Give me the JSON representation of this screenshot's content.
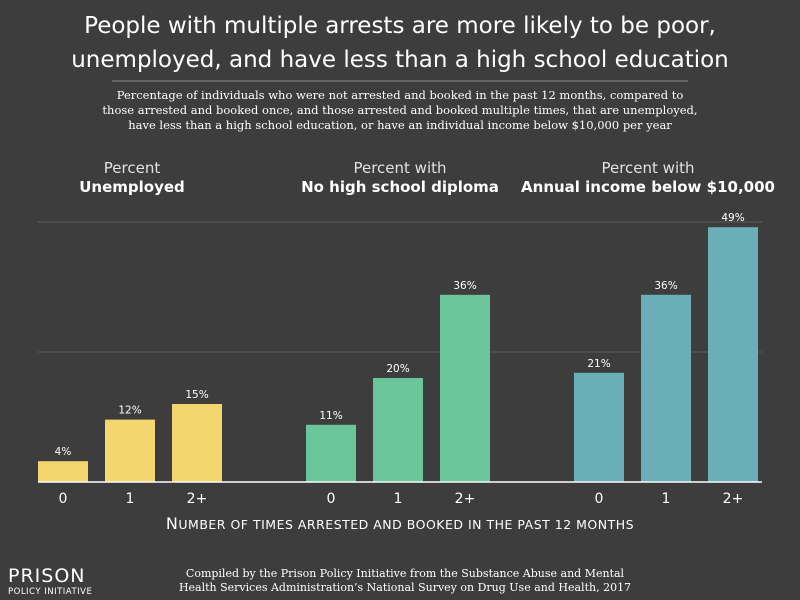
{
  "chart_data": {
    "type": "bar",
    "title_lines": [
      "People with multiple arrests are more likely to be poor,",
      "unemployed, and have less than a high school education"
    ],
    "subtitle_lines": [
      "Percentage of individuals who were not arrested and booked in the past 12 months, compared to",
      "those arrested and booked once, and those arrested and booked multiple times, that are unemployed,",
      "have less than a high school education, or have an individual income below $10,000 per year"
    ],
    "categories": [
      "0",
      "1",
      "2+"
    ],
    "xlabel": {
      "initial": "N",
      "rest": "UMBER OF TIMES ARRESTED AND BOOKED IN THE PAST 12 MONTHS"
    },
    "ylim": [
      0,
      50
    ],
    "grid": true,
    "gridlines": [
      25,
      50
    ],
    "groups": [
      {
        "label_line1": "Percent",
        "label_line2": "Unemployed",
        "color": "#f4d66e",
        "values": [
          4,
          12,
          15
        ],
        "value_labels": [
          "4%",
          "12%",
          "15%"
        ]
      },
      {
        "label_line1": "Percent with",
        "label_line2": "No high school diploma",
        "color": "#6ac59b",
        "values": [
          11,
          20,
          36
        ],
        "value_labels": [
          "11%",
          "20%",
          "36%"
        ]
      },
      {
        "label_line1": "Percent with",
        "label_line2": "Annual income below $10,000",
        "color": "#6aafb8",
        "values": [
          21,
          36,
          49
        ],
        "value_labels": [
          "21%",
          "36%",
          "49%"
        ]
      }
    ]
  },
  "source_lines": [
    "Compiled by the Prison Policy Initiative from the Substance Abuse and Mental",
    "Health Services Administration’s National Survey on Drug Use and Health, 2017"
  ],
  "logo": {
    "top": "PRISON",
    "bottom": "POLICY INITIATIVE"
  }
}
